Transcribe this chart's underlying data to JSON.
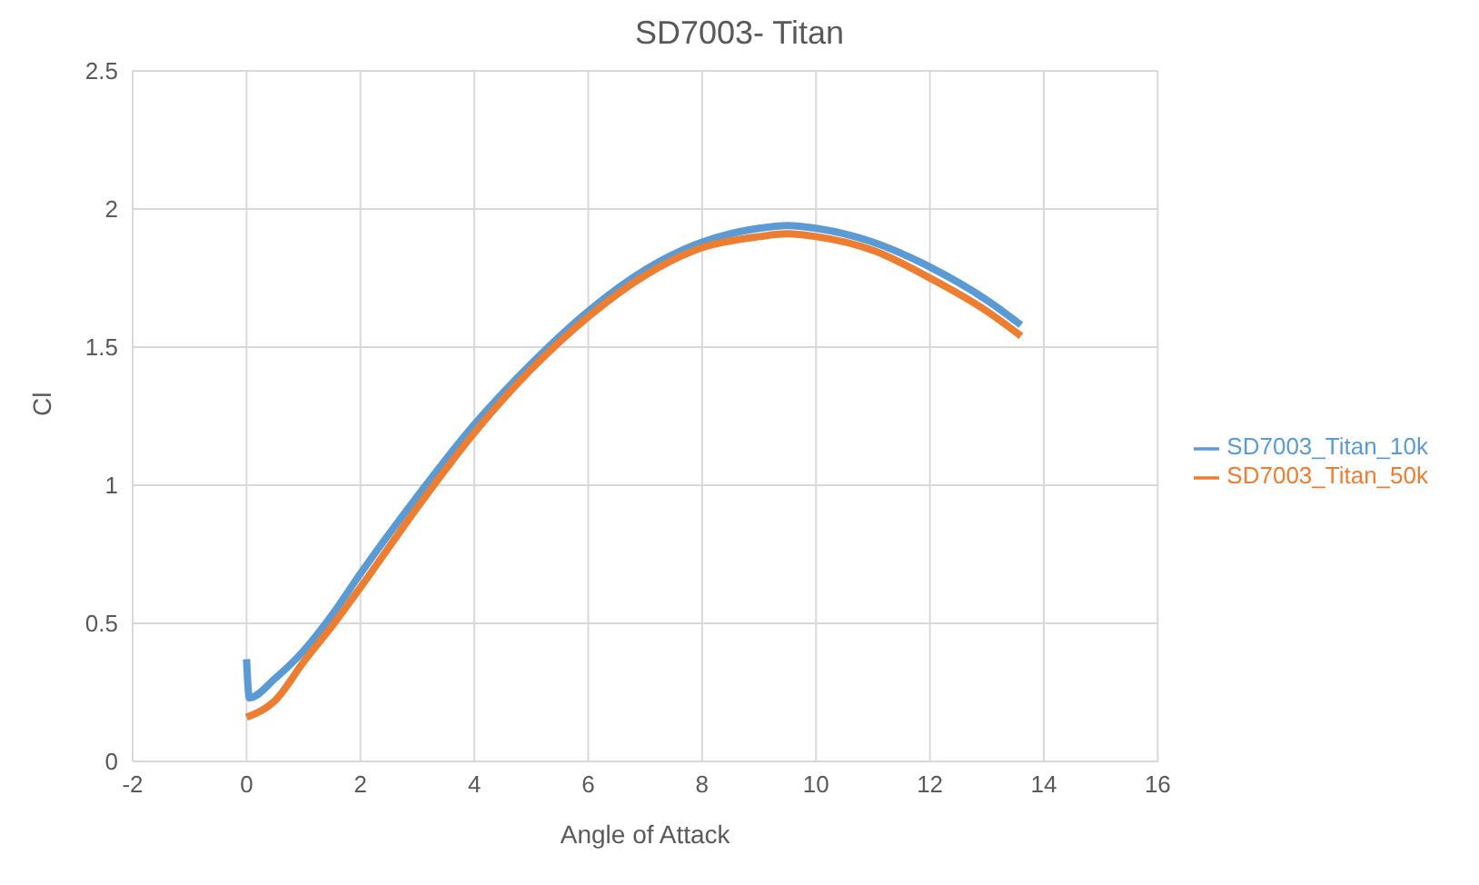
{
  "chart_data": {
    "type": "line",
    "title": "SD7003- Titan",
    "xlabel": "Angle of Attack",
    "ylabel": "Cl",
    "xlim": [
      -2,
      16
    ],
    "xticks": [
      -2,
      0,
      2,
      4,
      6,
      8,
      10,
      12,
      14,
      16
    ],
    "ylim": [
      0,
      2.5
    ],
    "yticks": [
      0,
      0.5,
      1,
      1.5,
      2,
      2.5
    ],
    "grid": true,
    "legend": "right",
    "marker": "none",
    "line_style": "solid",
    "series": [
      {
        "name": "SD7003_Titan_10k",
        "color": "#5b9bd5",
        "x": [
          0,
          0.05,
          0.5,
          1,
          1.5,
          2,
          3,
          4,
          5,
          6,
          7,
          8,
          9,
          9.5,
          10,
          11,
          12,
          13,
          13.6
        ],
        "values": [
          0.37,
          0.23,
          0.3,
          0.4,
          0.53,
          0.68,
          0.96,
          1.22,
          1.44,
          1.63,
          1.78,
          1.88,
          1.93,
          1.94,
          1.93,
          1.88,
          1.79,
          1.67,
          1.58
        ]
      },
      {
        "name": "SD7003_Titan_50k",
        "color": "#ed7d31",
        "x": [
          0,
          0.5,
          1,
          1.5,
          2,
          3,
          4,
          5,
          6,
          7,
          8,
          9,
          9.5,
          10,
          11,
          12,
          13,
          13.6
        ],
        "values": [
          0.16,
          0.22,
          0.36,
          0.49,
          0.63,
          0.92,
          1.19,
          1.42,
          1.61,
          1.76,
          1.86,
          1.9,
          1.91,
          1.9,
          1.85,
          1.75,
          1.63,
          1.54
        ]
      }
    ]
  }
}
